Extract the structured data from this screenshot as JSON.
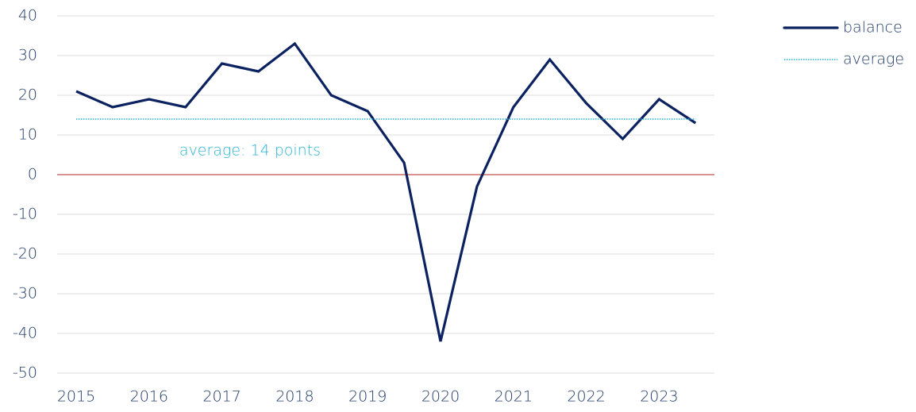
{
  "chart_data": {
    "type": "line",
    "categories": [
      "2015",
      null,
      "2016",
      null,
      "2017",
      null,
      "2018",
      null,
      "2019",
      null,
      "2020",
      null,
      "2021",
      null,
      "2022",
      null,
      "2023",
      null
    ],
    "series": [
      {
        "name": "balance",
        "color": "#0b2160",
        "style": "solid",
        "values": [
          21,
          17,
          19,
          17,
          28,
          26,
          33,
          20,
          16,
          3,
          -42,
          -3,
          17,
          29,
          18,
          9,
          19,
          13
        ]
      },
      {
        "name": "average",
        "color": "#2bb3d6",
        "style": "dotted",
        "values": [
          14,
          14,
          14,
          14,
          14,
          14,
          14,
          14,
          14,
          14,
          14,
          14,
          14,
          14,
          14,
          14,
          14,
          14
        ]
      }
    ],
    "annotations": [
      {
        "text": "average: 14 points",
        "color": "#2bb3d6"
      }
    ],
    "ylim": [
      -50,
      40
    ],
    "yticks": [
      -50,
      -40,
      -30,
      -20,
      -10,
      0,
      10,
      20,
      30,
      40
    ],
    "grid": true,
    "zero_line_color": "#c0504d",
    "legend": "top-right"
  }
}
